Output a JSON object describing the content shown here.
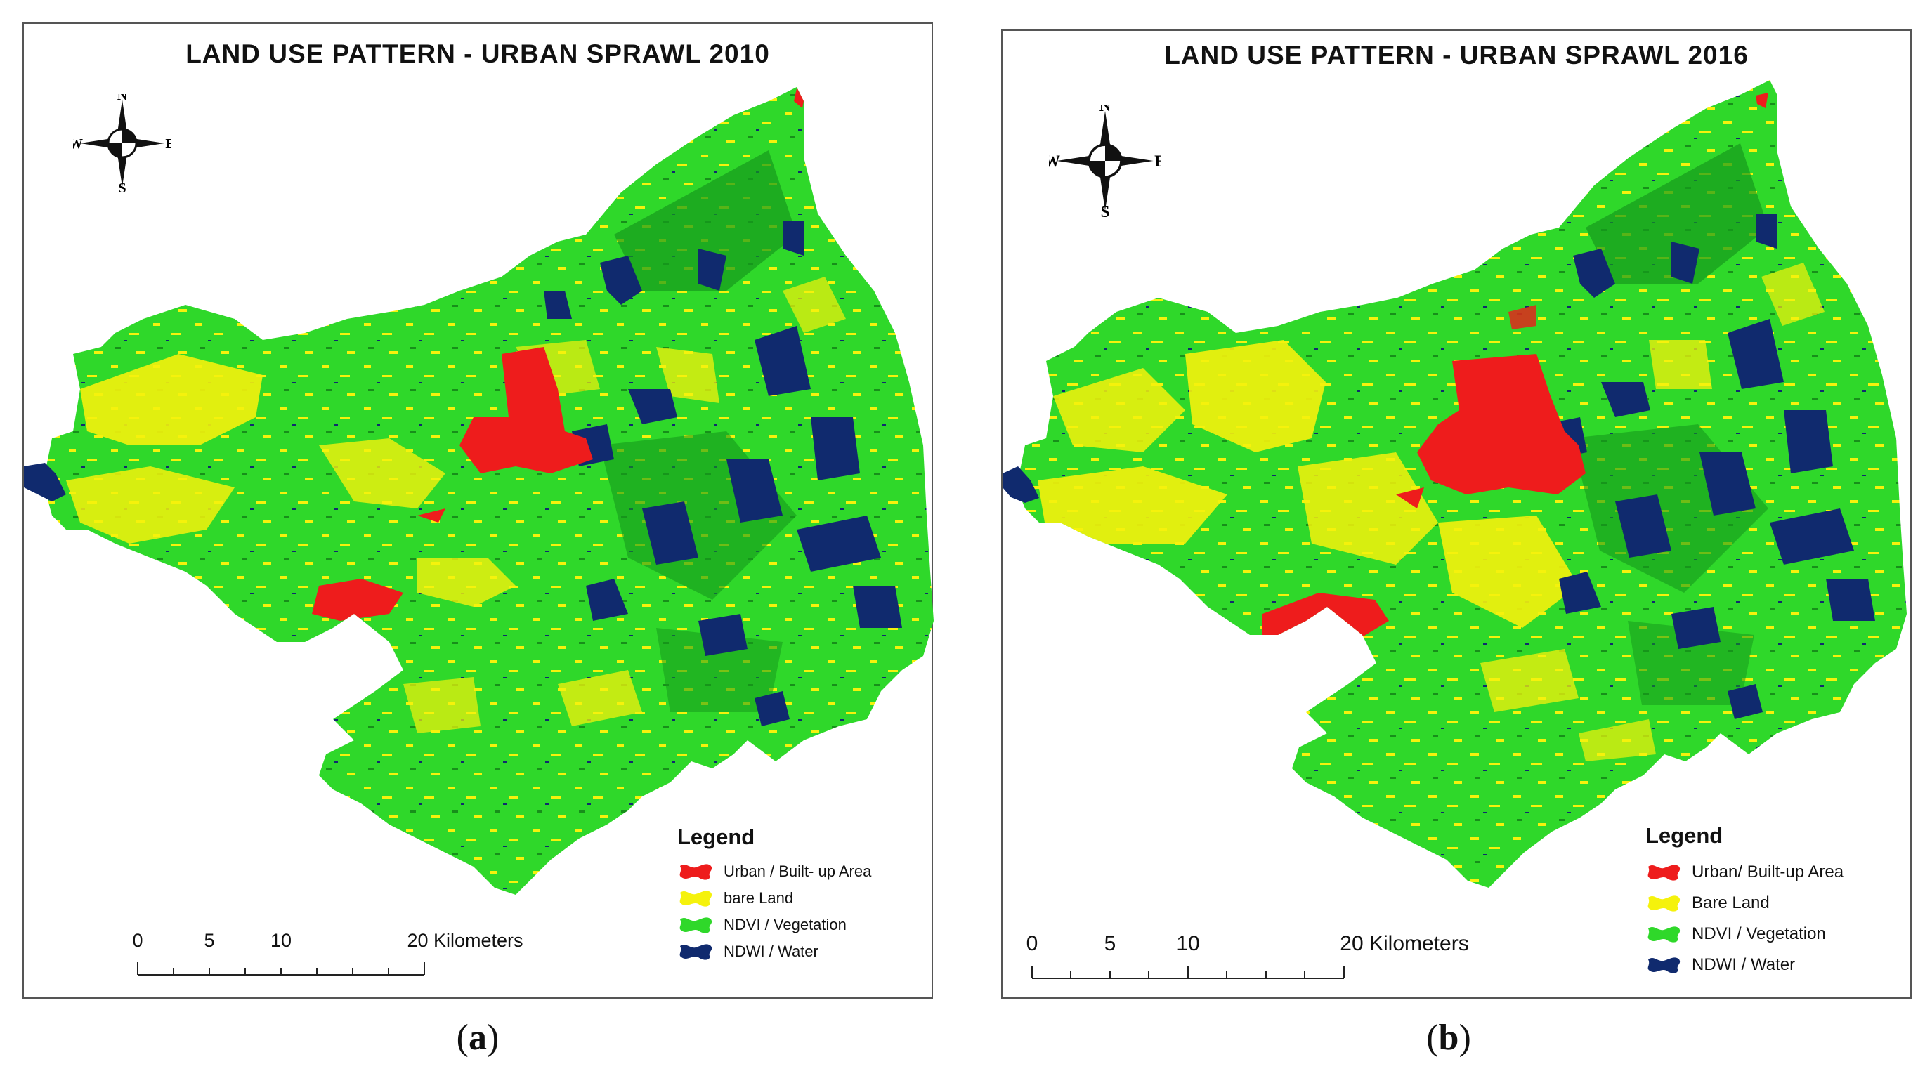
{
  "figure": {
    "panels": [
      {
        "id": "a",
        "title": "LAND USE PATTERN - URBAN SPRAWL 2010",
        "caption_letter": "a",
        "compass": {
          "n": "N",
          "s": "S",
          "e": "E",
          "w": "W"
        },
        "legend": {
          "title": "Legend",
          "items": [
            {
              "label": "Urban / Built- up Area",
              "color": "#ee1c1c"
            },
            {
              "label": "bare Land",
              "color": "#f5f20c"
            },
            {
              "label": "NDVI / Vegetation",
              "color": "#2fd82a"
            },
            {
              "label": "NDWI / Water",
              "color": "#102a6e"
            }
          ]
        },
        "scale": {
          "ticks": [
            "0",
            "5",
            "10"
          ],
          "end_label": "20 Kilometers"
        }
      },
      {
        "id": "b",
        "title": "LAND USE PATTERN - URBAN SPRAWL 2016",
        "caption_letter": "b",
        "compass": {
          "n": "N",
          "s": "S",
          "e": "E",
          "w": "W"
        },
        "legend": {
          "title": "Legend",
          "items": [
            {
              "label": "Urban/ Built-up Area",
              "color": "#ee1c1c"
            },
            {
              "label": "Bare Land",
              "color": "#f5f20c"
            },
            {
              "label": "NDVI / Vegetation",
              "color": "#2fd82a"
            },
            {
              "label": "NDWI / Water",
              "color": "#102a6e"
            }
          ]
        },
        "scale": {
          "ticks": [
            "0",
            "5",
            "10"
          ],
          "end_label": "20 Kilometers"
        }
      }
    ],
    "caption_a": {
      "open": "(",
      "letter": "a",
      "close": ")"
    },
    "caption_b": {
      "open": "(",
      "letter": "b",
      "close": ")"
    }
  },
  "colors": {
    "urban": "#ee1c1c",
    "bare": "#f5f20c",
    "vegetation": "#2fd82a",
    "water": "#102a6e",
    "frame": "#555555"
  },
  "icons": {
    "compass": "compass-rose-icon",
    "legend_swatch": "blob-swatch-icon"
  }
}
